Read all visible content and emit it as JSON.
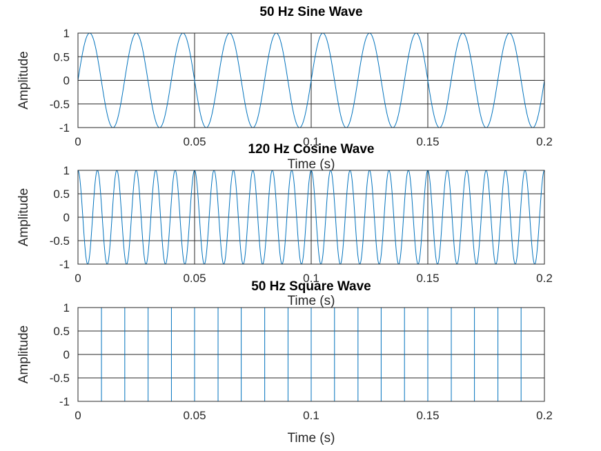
{
  "chart_data": [
    {
      "type": "line",
      "title": "50 Hz Sine Wave",
      "xlabel": "Time (s)",
      "ylabel": "Amplitude",
      "xlim": [
        0,
        0.2
      ],
      "ylim": [
        -1,
        1
      ],
      "xticks": [
        "0",
        "0.05",
        "0.1",
        "0.15",
        "0.2"
      ],
      "yticks": [
        "1",
        "0.5",
        "0",
        "-0.5",
        "-1"
      ],
      "grid": true,
      "series": [
        {
          "waveform": "sine",
          "frequency_hz": 50,
          "amplitude": 1,
          "color": "#0072bd"
        }
      ]
    },
    {
      "type": "line",
      "title": "120 Hz Cosine Wave",
      "xlabel": "Time (s)",
      "ylabel": "Amplitude",
      "xlim": [
        0,
        0.2
      ],
      "ylim": [
        -1,
        1
      ],
      "xticks": [
        "0",
        "0.05",
        "0.1",
        "0.15",
        "0.2"
      ],
      "yticks": [
        "1",
        "0.5",
        "0",
        "-0.5",
        "-1"
      ],
      "grid": true,
      "series": [
        {
          "waveform": "cosine",
          "frequency_hz": 120,
          "amplitude": 1,
          "color": "#0072bd"
        }
      ]
    },
    {
      "type": "line",
      "title": "50 Hz Square Wave",
      "xlabel": "Time (s)",
      "ylabel": "Amplitude",
      "xlim": [
        0,
        0.2
      ],
      "ylim": [
        -1,
        1
      ],
      "xticks": [
        "0",
        "0.05",
        "0.1",
        "0.15",
        "0.2"
      ],
      "yticks": [
        "1",
        "0.5",
        "0",
        "-0.5",
        "-1"
      ],
      "grid": true,
      "series": [
        {
          "waveform": "square",
          "frequency_hz": 50,
          "amplitude": 1,
          "color": "#0072bd"
        }
      ]
    }
  ]
}
